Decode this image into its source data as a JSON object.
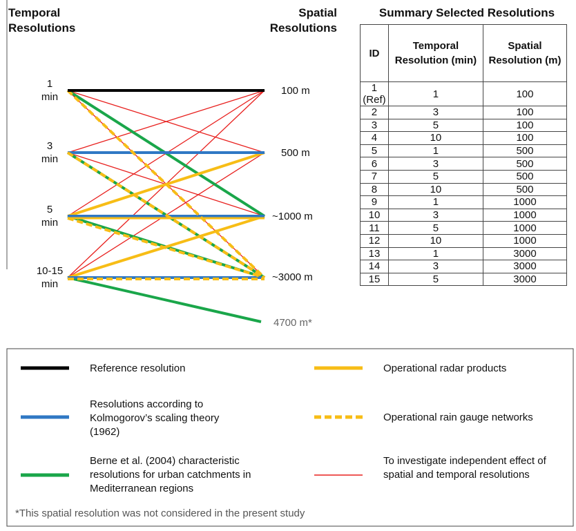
{
  "diagram": {
    "left_title": "Temporal Resolutions",
    "right_title": "Spatial Resolutions",
    "temporal_nodes": [
      "1 min",
      "3 min",
      "5 min",
      "10-15 min"
    ],
    "spatial_nodes": [
      "100 m",
      "500 m",
      "~1000 m",
      "~3000 m",
      "4700 m*"
    ]
  },
  "table": {
    "title": "Summary Selected Resolutions",
    "headers": [
      "ID",
      "Temporal Resolution (min)",
      "Spatial Resolution (m)"
    ],
    "rows": [
      [
        "1 (Ref)",
        "1",
        "100"
      ],
      [
        "2",
        "3",
        "100"
      ],
      [
        "3",
        "5",
        "100"
      ],
      [
        "4",
        "10",
        "100"
      ],
      [
        "5",
        "1",
        "500"
      ],
      [
        "6",
        "3",
        "500"
      ],
      [
        "7",
        "5",
        "500"
      ],
      [
        "8",
        "10",
        "500"
      ],
      [
        "9",
        "1",
        "1000"
      ],
      [
        "10",
        "3",
        "1000"
      ],
      [
        "11",
        "5",
        "1000"
      ],
      [
        "12",
        "10",
        "1000"
      ],
      [
        "13",
        "1",
        "3000"
      ],
      [
        "14",
        "3",
        "3000"
      ],
      [
        "15",
        "5",
        "3000"
      ]
    ]
  },
  "legend": {
    "items": [
      "Reference resolution",
      "Resolutions according to Kolmogorov’s scaling theory (1962)",
      "Berne et al. (2004) characteristic resolutions for urban catchments in Mediterranean regions",
      "Operational radar products",
      "Operational rain gauge networks",
      "To investigate independent effect of spatial and temporal resolutions"
    ],
    "footnote": "*This spatial resolution was not considered in the present study"
  }
}
